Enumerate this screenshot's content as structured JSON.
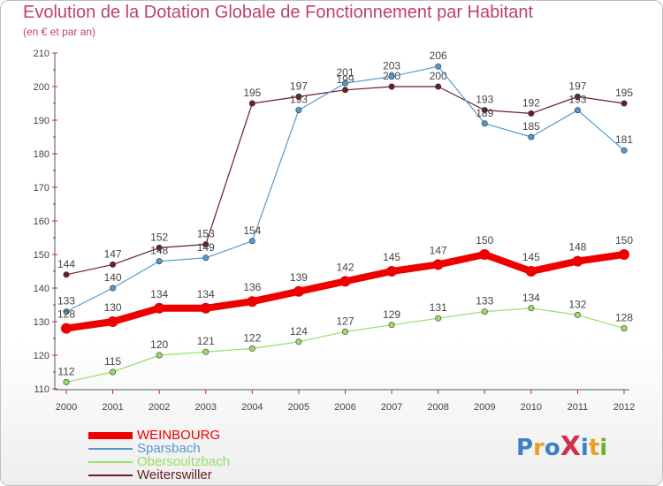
{
  "title": "Evolution de la Dotation Globale de Fonctionnement par Habitant",
  "subtitle": "(en € et par an)",
  "logo_text": "ProXiti",
  "chart_data": {
    "type": "line",
    "title": "Evolution de la Dotation Globale de Fonctionnement par Habitant",
    "subtitle": "(en € et par an)",
    "x": [
      2000,
      2001,
      2002,
      2003,
      2004,
      2005,
      2006,
      2007,
      2008,
      2009,
      2010,
      2011,
      2012
    ],
    "ylim": [
      110,
      210
    ],
    "yticks": [
      110,
      120,
      130,
      140,
      150,
      160,
      170,
      180,
      190,
      200,
      210
    ],
    "grid": false,
    "legend_position": "bottom-left",
    "series": [
      {
        "name": "WEINBOURG",
        "color": "#ee0000",
        "values": [
          128,
          130,
          134,
          134,
          136,
          139,
          142,
          145,
          147,
          150,
          145,
          148,
          150
        ]
      },
      {
        "name": "Sparsbach",
        "color": "#5599cc",
        "values": [
          133,
          140,
          148,
          149,
          154,
          193,
          201,
          203,
          206,
          189,
          185,
          193,
          181
        ]
      },
      {
        "name": "Obersoultzbach",
        "color": "#99dd66",
        "values": [
          112,
          115,
          120,
          121,
          122,
          124,
          127,
          129,
          131,
          133,
          134,
          132,
          128
        ]
      },
      {
        "name": "Weiterswiller",
        "color": "#6b1f24",
        "values": [
          144,
          147,
          152,
          153,
          195,
          197,
          199,
          200,
          200,
          193,
          192,
          197,
          195
        ]
      }
    ]
  }
}
